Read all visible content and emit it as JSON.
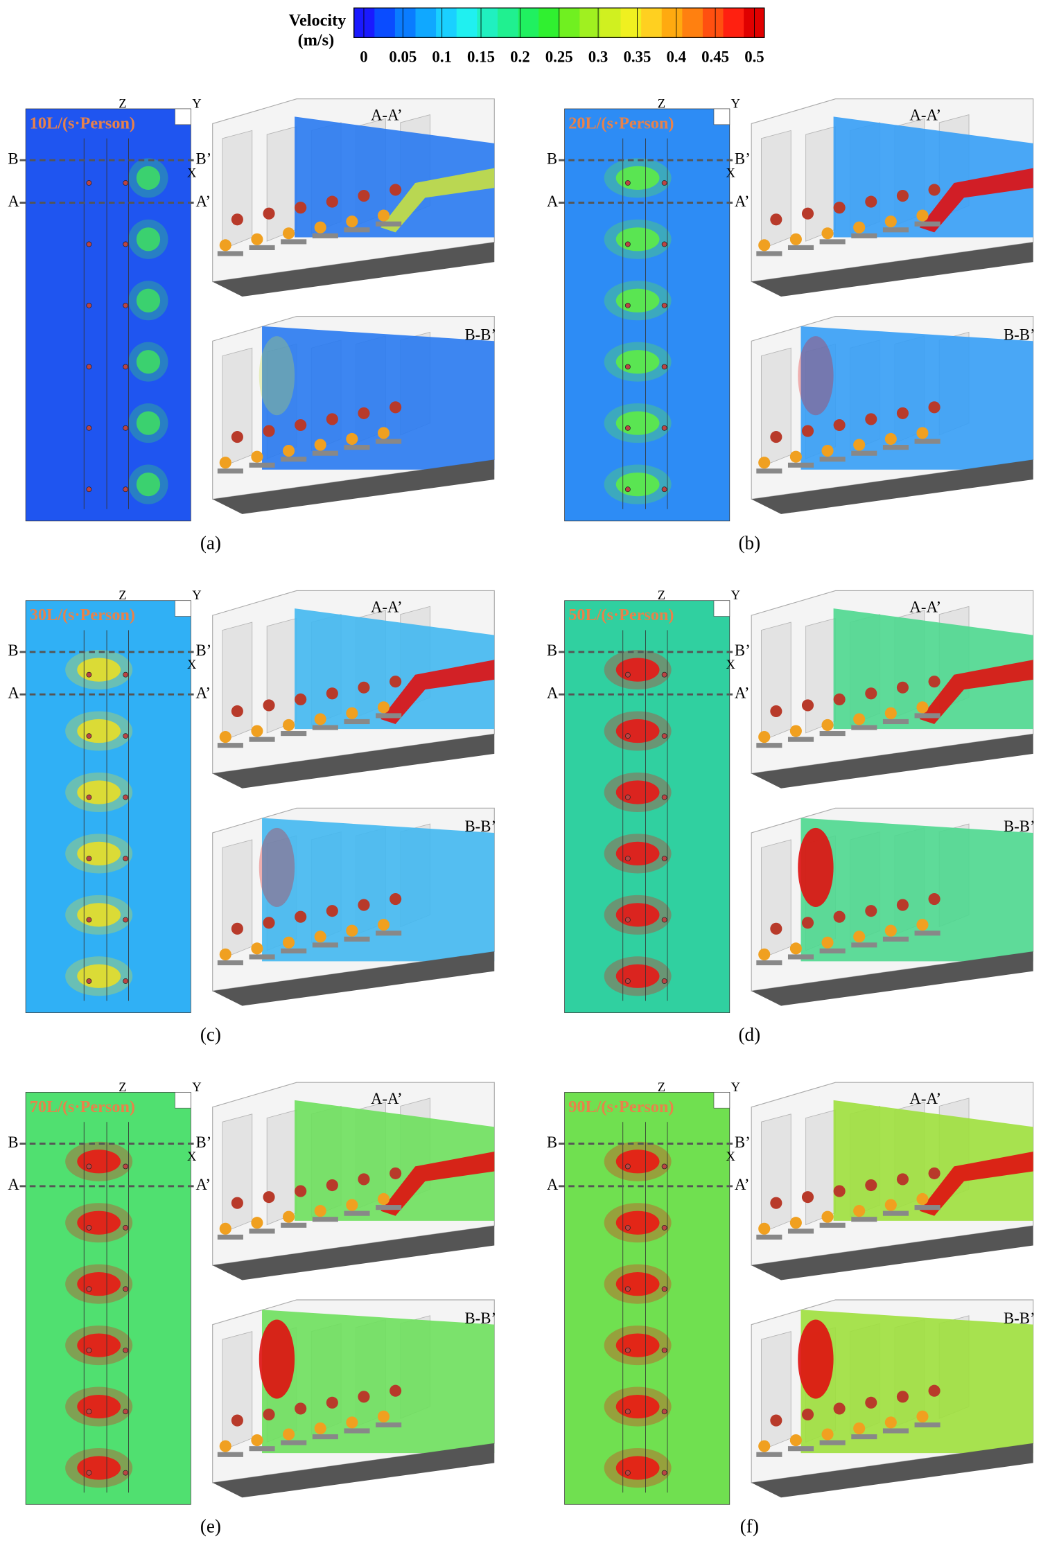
{
  "colorbar": {
    "title": "Velocity",
    "unit": "(m/s)",
    "ticks": [
      0,
      0.05,
      0.1,
      0.15,
      0.2,
      0.25,
      0.3,
      0.35,
      0.4,
      0.45,
      0.5
    ],
    "colors": [
      "#1a1aff",
      "#0a4cff",
      "#0a7cff",
      "#10a8ff",
      "#1ad0ff",
      "#20f0f0",
      "#20f0c0",
      "#20f090",
      "#20f060",
      "#30f030",
      "#70f020",
      "#a0f020",
      "#d0f020",
      "#f0f020",
      "#ffd020",
      "#ffaa10",
      "#ff8010",
      "#ff5010",
      "#ff2010",
      "#e00000"
    ]
  },
  "panels": [
    {
      "flow_label": "10L/(s·Person)",
      "caption": "(a)",
      "b": "B",
      "b_prime": "B’",
      "a": "A",
      "a_prime": "A’",
      "slice_top": "A-A’",
      "slice_bottom": "B-B’",
      "axis_z": "Z",
      "axis_y": "Y",
      "axis_x": "X",
      "plan_color": "#1f55f0",
      "blob_color": "#40e060",
      "slice_color": "#2c7cf0",
      "jet_color": "#c8e040"
    },
    {
      "flow_label": "20L/(s·Person)",
      "caption": "(b)",
      "b": "B",
      "b_prime": "B’",
      "a": "A",
      "a_prime": "A’",
      "slice_top": "A-A’",
      "slice_bottom": "B-B’",
      "axis_z": "Z",
      "axis_y": "Y",
      "axis_x": "X",
      "plan_color": "#2d8cf5",
      "blob_color": "#60f040",
      "slice_color": "#3aa0f5",
      "jet_color": "#e01010"
    },
    {
      "flow_label": "30L/(s·Person)",
      "caption": "(c)",
      "b": "B",
      "b_prime": "B’",
      "a": "A",
      "a_prime": "A’",
      "slice_top": "A-A’",
      "slice_bottom": "B-B’",
      "axis_z": "Z",
      "axis_y": "Y",
      "axis_x": "X",
      "plan_color": "#30b0f5",
      "blob_color": "#f0e020",
      "slice_color": "#45b8f0",
      "jet_color": "#e01010"
    },
    {
      "flow_label": "50L/(s·Person)",
      "caption": "(d)",
      "b": "B",
      "b_prime": "B’",
      "a": "A",
      "a_prime": "A’",
      "slice_top": "A-A’",
      "slice_bottom": "B-B’",
      "axis_z": "Z",
      "axis_y": "Y",
      "axis_x": "X",
      "plan_color": "#30d0a0",
      "blob_color": "#f01010",
      "slice_color": "#50d890",
      "jet_color": "#e01010"
    },
    {
      "flow_label": "70L/(s·Person)",
      "caption": "(e)",
      "b": "B",
      "b_prime": "B’",
      "a": "A",
      "a_prime": "A’",
      "slice_top": "A-A’",
      "slice_bottom": "B-B’",
      "axis_z": "Z",
      "axis_y": "Y",
      "axis_x": "X",
      "plan_color": "#50e070",
      "blob_color": "#f01010",
      "slice_color": "#70e060",
      "jet_color": "#e01010"
    },
    {
      "flow_label": "90L/(s·Person)",
      "caption": "(f)",
      "b": "B",
      "b_prime": "B’",
      "a": "A",
      "a_prime": "A’",
      "slice_top": "A-A’",
      "slice_bottom": "B-B’",
      "axis_z": "Z",
      "axis_y": "Y",
      "axis_x": "X",
      "plan_color": "#70e050",
      "blob_color": "#f01010",
      "slice_color": "#a0e040",
      "jet_color": "#e01010"
    }
  ]
}
